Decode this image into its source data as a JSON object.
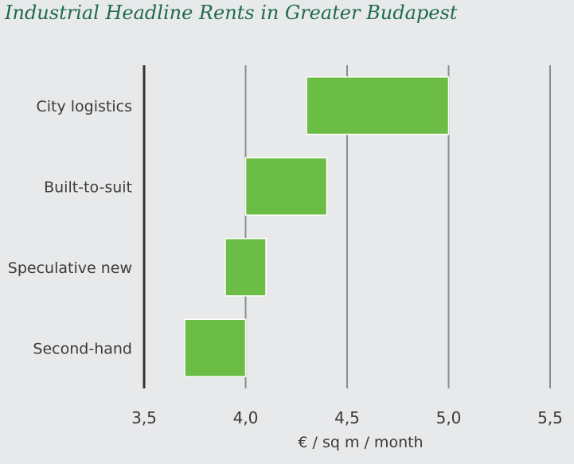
{
  "chart_data": {
    "type": "bar",
    "orientation": "horizontal",
    "subtype": "floating-range",
    "title": "Industrial Headline Rents in Greater Budapest",
    "xlabel": "€ / sq m / month",
    "ylabel": "",
    "categories": [
      "City logistics",
      "Built-to-suit",
      "Speculative new",
      "Second-hand"
    ],
    "series": [
      {
        "ranges": [
          [
            4.3,
            5.0
          ],
          [
            4.0,
            4.4
          ],
          [
            3.9,
            4.1
          ],
          [
            3.7,
            4.0
          ]
        ]
      }
    ],
    "xlim": [
      3.5,
      5.5
    ],
    "ticks": [
      3.5,
      4.0,
      4.5,
      5.0,
      5.5
    ],
    "tick_labels": [
      "3,5",
      "4,0",
      "4,5",
      "5,0",
      "5,5"
    ],
    "grid": "vertical",
    "legend": "none",
    "colors": {
      "bar": "#6cbd45",
      "bar_stroke": "#ffffff",
      "grid": "#8a8c8e",
      "axis": "#333333",
      "title": "#1f6b4a",
      "background": "#e8e9ea"
    }
  }
}
